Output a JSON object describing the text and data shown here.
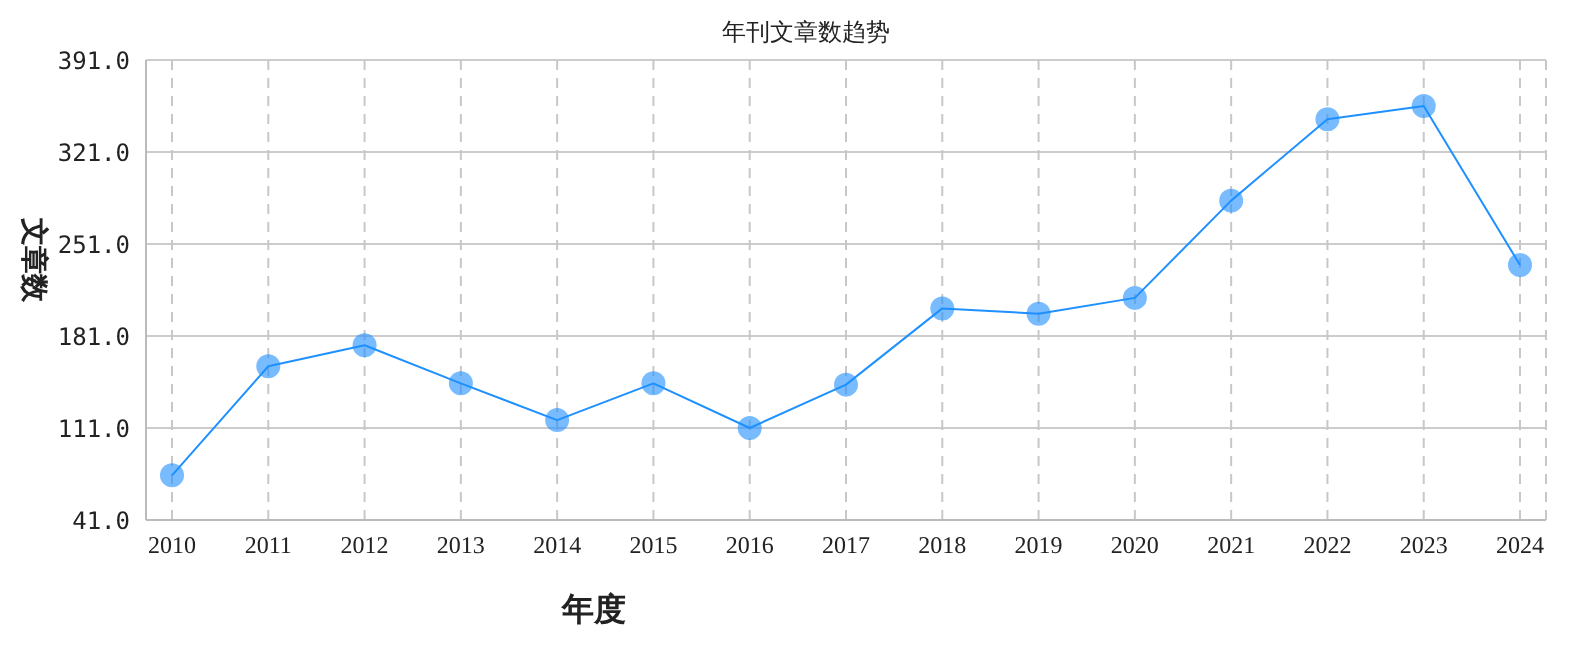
{
  "chart_data": {
    "type": "line",
    "title": "年刊文章数趋势",
    "xlabel": "年度",
    "ylabel": "文章数",
    "categories": [
      "2010",
      "2011",
      "2012",
      "2013",
      "2014",
      "2015",
      "2016",
      "2017",
      "2018",
      "2019",
      "2020",
      "2021",
      "2022",
      "2023",
      "2024"
    ],
    "series": [
      {
        "color": "#1e90ff",
        "values": [
          75,
          158,
          174,
          145,
          117,
          145,
          111,
          144,
          202,
          198,
          210,
          284,
          346,
          356,
          235
        ]
      }
    ],
    "ylim": [
      41,
      391
    ],
    "yticks": [
      {
        "value": 41,
        "label": "41.0"
      },
      {
        "value": 111,
        "label": "111.0"
      },
      {
        "value": 181,
        "label": "181.0"
      },
      {
        "value": 251,
        "label": "251.0"
      },
      {
        "value": 321,
        "label": "321.0"
      },
      {
        "value": 391,
        "label": "391.0"
      }
    ],
    "grid": true,
    "marker": "circle",
    "line_style": "solid",
    "legend": false
  }
}
